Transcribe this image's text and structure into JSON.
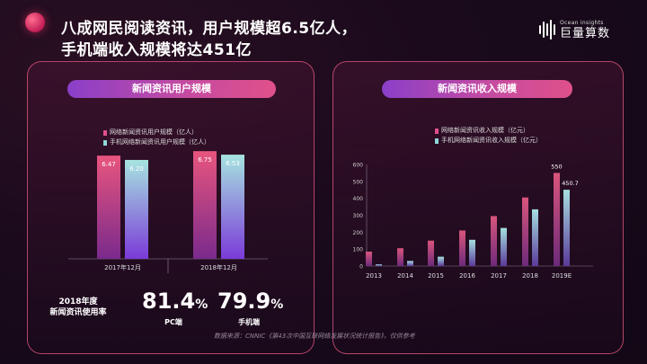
{
  "title": {
    "line1": "八成网民阅读资讯，用户规模超6.5亿人，",
    "line2": "手机端收入规模将达451亿"
  },
  "brand": {
    "small": "Ocean insights",
    "big": "巨量算数"
  },
  "colors": {
    "accent_pink": "#e0508a",
    "accent_purple": "#8a3fc9",
    "teal": "#8fd6d8",
    "panel_border": "#e65a82"
  },
  "chart_data": [
    {
      "type": "bar",
      "title": "新闻资讯用户规模",
      "categories": [
        "2017年12月",
        "2018年12月"
      ],
      "series": [
        {
          "name": "网络新闻资讯用户规模（亿人）",
          "values": [
            6.47,
            6.75
          ],
          "labels": [
            "6.47",
            "6.75"
          ]
        },
        {
          "name": "手机网络新闻资讯用户规模（亿人）",
          "values": [
            6.2,
            6.53
          ],
          "labels": [
            "6.20",
            "6.53"
          ]
        }
      ],
      "ylim": [
        0,
        8
      ],
      "grid": false,
      "legend": "top-left"
    },
    {
      "type": "bar",
      "title": "新闻资讯收入规模",
      "categories": [
        "2013",
        "2014",
        "2015",
        "2016",
        "2017",
        "2018",
        "2019E"
      ],
      "series": [
        {
          "name": "网络新闻资讯收入规模（亿元）",
          "values": [
            85,
            105,
            150,
            210,
            295,
            405,
            550
          ]
        },
        {
          "name": "手机网络新闻资讯收入规模（亿元）",
          "values": [
            10,
            30,
            55,
            155,
            225,
            335,
            450.7
          ]
        }
      ],
      "data_labels": {
        "last_pink": "550",
        "last_teal": "450.7"
      },
      "ylim": [
        0,
        600
      ],
      "y_ticks": [
        0,
        100,
        200,
        300,
        400,
        500,
        600
      ],
      "grid": false,
      "legend": "top-left"
    }
  ],
  "usage": {
    "label_line1": "2018年度",
    "label_line2": "新闻资讯使用率",
    "pc_value": "81.4",
    "pc_label": "PC端",
    "mobile_value": "79.9",
    "mobile_label": "手机端",
    "percent": "%"
  },
  "source": "数据来源：CNNIC《第43次中国互联网络发展状况统计报告》，仅供参考"
}
